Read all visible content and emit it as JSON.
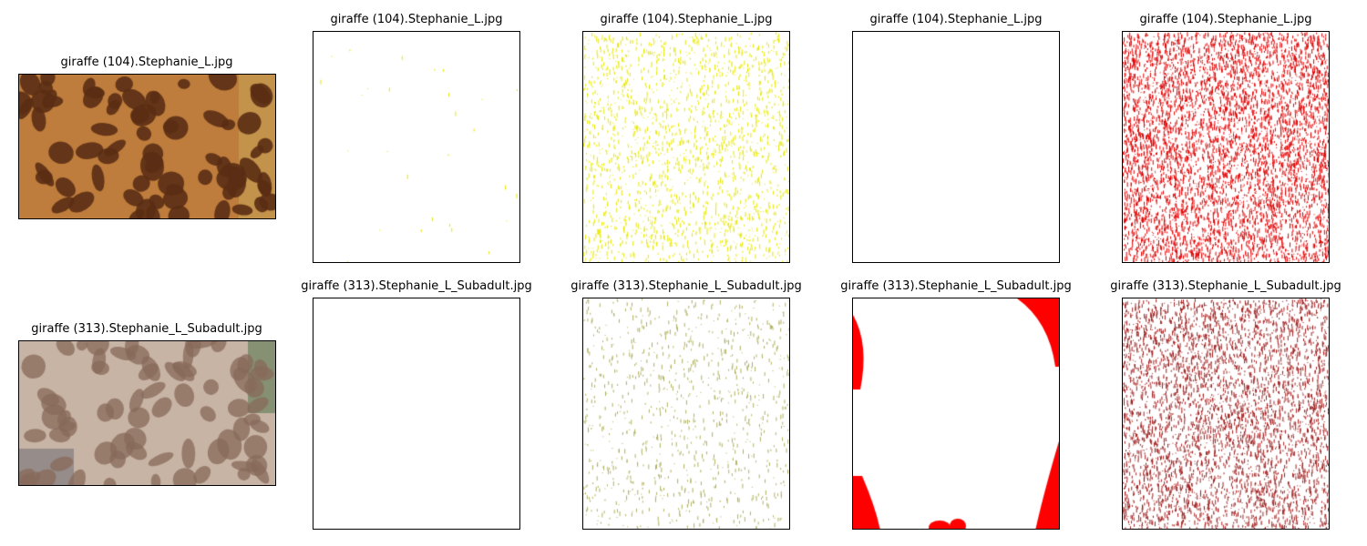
{
  "figure": {
    "rows": [
      {
        "title": "giraffe (104).Stephanie_L.jpg",
        "original_style": "dark",
        "panels": [
          {
            "kind": "photo",
            "title": "giraffe (104).Stephanie_L.jpg"
          },
          {
            "kind": "mask",
            "title": "giraffe (104).Stephanie_L.jpg",
            "color": "#e6e600",
            "density": 0.0015
          },
          {
            "kind": "mask",
            "title": "giraffe (104).Stephanie_L.jpg",
            "color": "#e8e800",
            "density": 0.1
          },
          {
            "kind": "mask",
            "title": "giraffe (104).Stephanie_L.jpg",
            "color": "#ff0000",
            "density": 0.0
          },
          {
            "kind": "mask",
            "title": "giraffe (104).Stephanie_L.jpg",
            "color": "#e00000",
            "density": 0.28
          }
        ]
      },
      {
        "title": "giraffe (313).Stephanie_L_Subadult.jpg",
        "original_style": "light",
        "panels": [
          {
            "kind": "photo",
            "title": "giraffe (313).Stephanie_L_Subadult.jpg"
          },
          {
            "kind": "mask",
            "title": "giraffe (313).Stephanie_L_Subadult.jpg",
            "color": "#ffffff",
            "density": 0.0
          },
          {
            "kind": "mask",
            "title": "giraffe (313).Stephanie_L_Subadult.jpg",
            "color": "#b0b060",
            "density": 0.05
          },
          {
            "kind": "blob",
            "title": "giraffe (313).Stephanie_L_Subadult.jpg",
            "color": "#ff0000"
          },
          {
            "kind": "mask",
            "title": "giraffe (313).Stephanie_L_Subadult.jpg",
            "color": "#a02020",
            "density": 0.22
          }
        ]
      }
    ]
  }
}
